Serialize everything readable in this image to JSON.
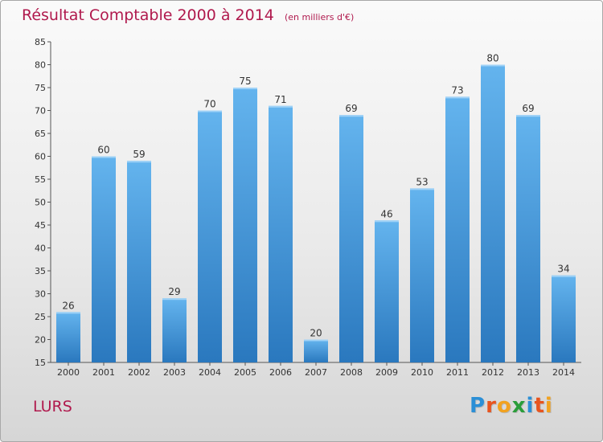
{
  "chart_data": {
    "type": "bar",
    "title": "Résultat Comptable 2000 à 2014",
    "subtitle": "(en milliers d'€)",
    "xlabel": "",
    "ylabel": "",
    "categories": [
      "2000",
      "2001",
      "2002",
      "2003",
      "2004",
      "2005",
      "2006",
      "2007",
      "2008",
      "2009",
      "2010",
      "2011",
      "2012",
      "2013",
      "2014"
    ],
    "values": [
      26,
      60,
      59,
      29,
      70,
      75,
      71,
      20,
      69,
      46,
      53,
      73,
      80,
      69,
      34
    ],
    "ylim": [
      15,
      85
    ],
    "yticks": [
      15,
      20,
      25,
      30,
      35,
      40,
      45,
      50,
      55,
      60,
      65,
      70,
      75,
      80,
      85
    ],
    "grid": false,
    "legend": "none",
    "bar_color": "#4a90d9"
  },
  "location": "LURS",
  "logo": {
    "letters": [
      "P",
      "r",
      "o",
      "x",
      "i",
      "t",
      "i"
    ],
    "colors": [
      "#2b8fd6",
      "#e8541e",
      "#f2a21f",
      "#2a9d3a",
      "#2b8fd6",
      "#e8541e",
      "#f2a21f"
    ]
  },
  "colors": {
    "title": "#b0194d",
    "bar_light": "#64b4ee",
    "bar_dark": "#2a78be"
  }
}
